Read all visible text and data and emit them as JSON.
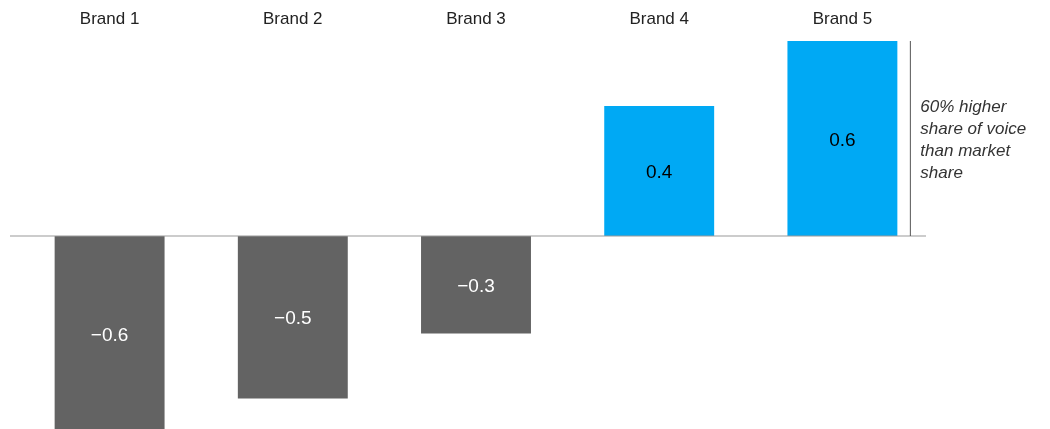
{
  "chart_data": {
    "type": "bar",
    "categories": [
      "Brand 1",
      "Brand 2",
      "Brand 3",
      "Brand 4",
      "Brand 5"
    ],
    "values": [
      -0.6,
      -0.5,
      -0.3,
      0.4,
      0.6
    ],
    "colors": [
      "#636363",
      "#636363",
      "#636363",
      "#00a9f4",
      "#00a9f4"
    ],
    "relative": false,
    "data_labels": true,
    "annotations": [
      "60% higher share of voice than market share"
    ]
  }
}
